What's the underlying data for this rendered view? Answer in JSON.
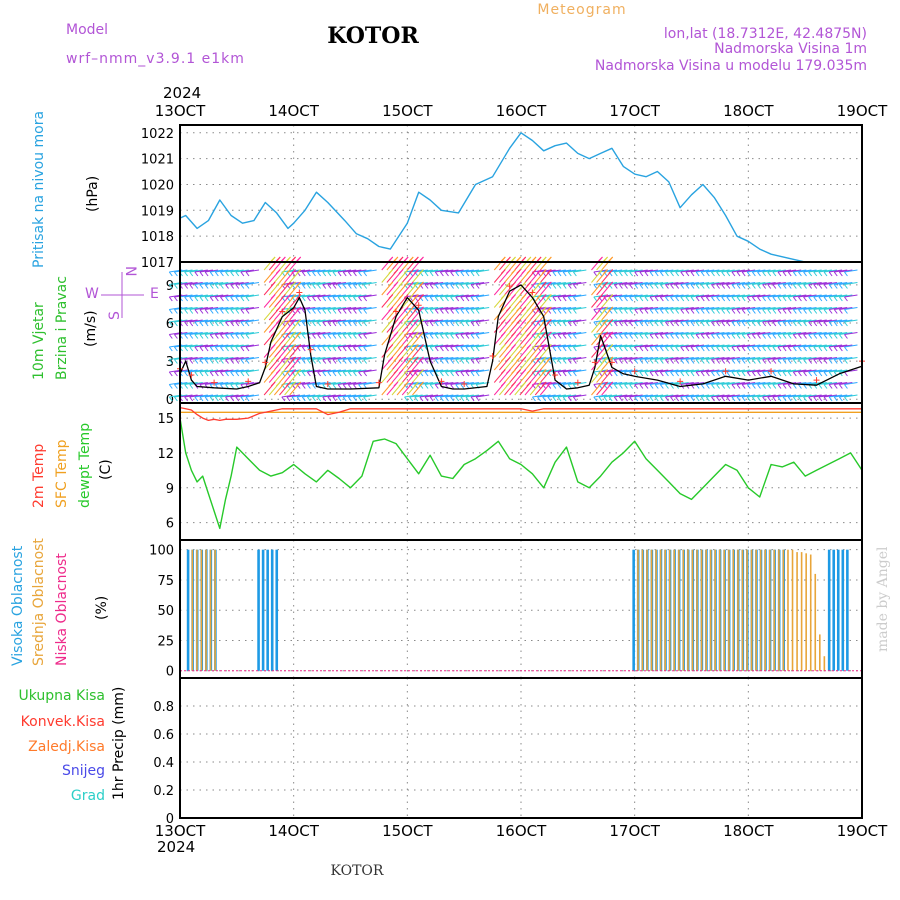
{
  "header": {
    "model_label": "Model",
    "model_name": "wrf–nmm_v3.9.1  e1km",
    "station": "KOTOR",
    "product": "Meteogram",
    "lonlat": "lon,lat (18.7312E, 42.4875N)",
    "elevation": "Nadmorska Visina 1m",
    "model_elevation": "Nadmorska Visina u modelu 179.035m"
  },
  "footer": {
    "station": "KOTOR",
    "credit": "made by Angel"
  },
  "time_axis": {
    "year": "2024",
    "ticks": [
      "13OCT",
      "14OCT",
      "15OCT",
      "16OCT",
      "17OCT",
      "18OCT",
      "19OCT"
    ]
  },
  "colors": {
    "pressure": "#29a3e0",
    "temp2m": "#ff3b2f",
    "sfc_temp": "#f0a020",
    "dewpoint": "#27c92a",
    "high_cloud": "#1d9ae5",
    "mid_cloud": "#e8a53a",
    "low_cloud": "#ee2a8a",
    "wind_label": "#2ec02e",
    "wind_speed_line": "#000000",
    "compass": "#b255d6",
    "header_purple": "#b255d6",
    "meteogram": "#f0b060",
    "snow": "#4a4ae8",
    "hail": "#2ccfc8",
    "total_precip": "#2ec02e",
    "conv_precip": "#ff3b2f",
    "frozen_precip": "#ff7a2a"
  },
  "panels": {
    "pressure": {
      "label": "Pritisak na nivou mora",
      "unit": "(hPa)"
    },
    "wind": {
      "label1": "10m Vjetar",
      "label2": "Brzina i Pravac",
      "unit": "(m/s)",
      "compass": {
        "n": "N",
        "w": "W",
        "e": "E",
        "s": "S"
      }
    },
    "temperature": {
      "label1": "2m Temp",
      "label2": "SFC Temp",
      "label3": "dewpt Temp",
      "unit": "(C)"
    },
    "clouds": {
      "label1": "Visoka Oblacnost",
      "label2": "Srednja Oblacnost",
      "label3": "Niska Oblacnost",
      "unit": "(%)"
    },
    "precip": {
      "legend": [
        "Ukupna Kisa",
        "Konvek.Kisa",
        "Zaledj.Kisa",
        "Snijeg",
        "Grad"
      ],
      "unit": "1hr Precip (mm)"
    }
  },
  "chart_data": [
    {
      "type": "line",
      "name": "Pritisak na nivou mora",
      "ylabel": "(hPa)",
      "ylim": [
        1017,
        1022.3
      ],
      "yticks": [
        1017,
        1018,
        1019,
        1020,
        1021,
        1022
      ],
      "x": [
        13.0,
        13.05,
        13.15,
        13.25,
        13.35,
        13.45,
        13.55,
        13.65,
        13.75,
        13.85,
        13.95,
        14.0,
        14.1,
        14.2,
        14.3,
        14.45,
        14.55,
        14.65,
        14.75,
        14.85,
        15.0,
        15.1,
        15.2,
        15.3,
        15.45,
        15.6,
        15.75,
        15.9,
        16.0,
        16.1,
        16.2,
        16.3,
        16.4,
        16.5,
        16.6,
        16.7,
        16.8,
        16.9,
        17.0,
        17.1,
        17.2,
        17.3,
        17.4,
        17.5,
        17.6,
        17.7,
        17.8,
        17.9,
        18.0,
        18.1,
        18.2,
        18.3,
        18.4,
        18.5,
        18.6,
        18.7,
        18.8,
        18.9,
        19.0
      ],
      "series": [
        {
          "values": [
            1018.7,
            1018.8,
            1018.3,
            1018.6,
            1019.4,
            1018.8,
            1018.5,
            1018.6,
            1019.3,
            1018.9,
            1018.3,
            1018.5,
            1019.0,
            1019.7,
            1019.3,
            1018.6,
            1018.1,
            1017.9,
            1017.6,
            1017.5,
            1018.5,
            1019.7,
            1019.4,
            1019.0,
            1018.9,
            1020.0,
            1020.3,
            1021.4,
            1022.0,
            1021.7,
            1021.3,
            1021.5,
            1021.6,
            1021.2,
            1021.0,
            1021.2,
            1021.4,
            1020.7,
            1020.4,
            1020.3,
            1020.5,
            1020.1,
            1019.1,
            1019.6,
            1020.0,
            1019.5,
            1018.8,
            1018.0,
            1017.8,
            1017.5,
            1017.3,
            1017.2,
            1017.1,
            1017.0,
            1017.0,
            1017.0,
            1017.0,
            1017.0,
            1017.0
          ]
        }
      ]
    },
    {
      "type": "line",
      "name": "10m Vjetar Brzina i Pravac",
      "ylabel": "(m/s)",
      "ylim": [
        -0.3,
        10.8
      ],
      "yticks": [
        0,
        3,
        6,
        9
      ],
      "x": [
        13.0,
        13.05,
        13.1,
        13.15,
        13.3,
        13.5,
        13.6,
        13.7,
        13.75,
        13.8,
        13.9,
        14.0,
        14.05,
        14.1,
        14.15,
        14.2,
        14.3,
        14.5,
        14.75,
        14.8,
        14.9,
        15.0,
        15.1,
        15.2,
        15.3,
        15.4,
        15.5,
        15.7,
        15.75,
        15.8,
        15.9,
        16.0,
        16.1,
        16.2,
        16.3,
        16.4,
        16.5,
        16.6,
        16.65,
        16.7,
        16.8,
        16.9,
        17.0,
        17.2,
        17.4,
        17.6,
        17.8,
        18.0,
        18.2,
        18.4,
        18.6,
        18.8,
        19.0
      ],
      "series": [
        {
          "values": [
            2.0,
            3.0,
            1.5,
            1.0,
            0.9,
            0.8,
            1.0,
            1.3,
            2.5,
            4.5,
            6.5,
            7.2,
            8.0,
            7.0,
            3.5,
            1.0,
            0.8,
            0.8,
            0.9,
            3.5,
            6.5,
            8.0,
            7.0,
            3.0,
            1.0,
            0.8,
            0.8,
            1.0,
            3.0,
            6.5,
            8.5,
            9.0,
            8.0,
            6.5,
            1.5,
            0.8,
            0.9,
            1.1,
            2.5,
            5.0,
            2.5,
            2.0,
            1.8,
            1.5,
            1.0,
            1.2,
            1.8,
            1.5,
            1.8,
            1.2,
            1.1,
            2.0,
            2.6
          ]
        }
      ]
    },
    {
      "type": "line",
      "name": "Temperature",
      "ylabel": "(C)",
      "ylim": [
        4.5,
        16.3
      ],
      "yticks": [
        6,
        9,
        12,
        15
      ],
      "x": [
        13.0,
        13.05,
        13.1,
        13.15,
        13.2,
        13.25,
        13.3,
        13.35,
        13.4,
        13.45,
        13.5,
        13.6,
        13.7,
        13.8,
        13.9,
        14.0,
        14.1,
        14.2,
        14.3,
        14.4,
        14.5,
        14.6,
        14.7,
        14.8,
        14.9,
        15.0,
        15.1,
        15.2,
        15.3,
        15.4,
        15.5,
        15.6,
        15.7,
        15.8,
        15.9,
        16.0,
        16.1,
        16.2,
        16.3,
        16.4,
        16.5,
        16.6,
        16.7,
        16.8,
        16.9,
        17.0,
        17.1,
        17.2,
        17.3,
        17.4,
        17.5,
        17.6,
        17.7,
        17.8,
        17.9,
        18.0,
        18.1,
        18.2,
        18.3,
        18.4,
        18.5,
        18.6,
        18.7,
        18.8,
        18.9,
        19.0
      ],
      "series": [
        {
          "values": [
            15.9,
            15.8,
            15.7,
            15.3,
            15.0,
            14.8,
            14.9,
            14.8,
            14.9,
            14.9,
            14.9,
            15.0,
            15.4,
            15.6,
            15.8,
            15.8,
            15.8,
            15.8,
            15.3,
            15.5,
            15.8,
            15.8,
            15.8,
            15.8,
            15.8,
            15.8,
            15.8,
            15.8,
            15.8,
            15.8,
            15.8,
            15.8,
            15.8,
            15.8,
            15.8,
            15.8,
            15.6,
            15.8,
            15.8,
            15.8,
            15.8,
            15.8,
            15.8,
            15.8,
            15.8,
            15.8,
            15.8,
            15.8,
            15.8,
            15.8,
            15.8,
            15.8,
            15.8,
            15.8,
            15.8,
            15.8,
            15.8,
            15.8,
            15.8,
            15.8,
            15.8,
            15.8,
            15.8,
            15.8,
            15.8,
            15.8
          ]
        },
        {
          "values": [
            15.5,
            15.5,
            15.5,
            15.5,
            15.5,
            15.5,
            15.5,
            15.5,
            15.5,
            15.5,
            15.5,
            15.5,
            15.5,
            15.5,
            15.5,
            15.5,
            15.5,
            15.5,
            15.5,
            15.5,
            15.5,
            15.5,
            15.5,
            15.5,
            15.5,
            15.5,
            15.5,
            15.5,
            15.5,
            15.5,
            15.5,
            15.5,
            15.5,
            15.5,
            15.5,
            15.5,
            15.5,
            15.5,
            15.5,
            15.5,
            15.5,
            15.5,
            15.5,
            15.5,
            15.5,
            15.5,
            15.5,
            15.5,
            15.5,
            15.5,
            15.5,
            15.5,
            15.5,
            15.5,
            15.5,
            15.5,
            15.5,
            15.5,
            15.5,
            15.5,
            15.5,
            15.5,
            15.5,
            15.5,
            15.5,
            15.5
          ]
        },
        {
          "values": [
            15.0,
            12.0,
            10.5,
            9.5,
            10.0,
            8.5,
            7.0,
            5.5,
            8.0,
            10.0,
            12.5,
            11.5,
            10.5,
            10.0,
            10.3,
            11.0,
            10.2,
            9.5,
            10.5,
            9.8,
            9.0,
            10.0,
            13.0,
            13.2,
            12.8,
            11.5,
            10.2,
            11.8,
            10.0,
            9.8,
            11.0,
            11.5,
            12.2,
            13.0,
            11.5,
            11.0,
            10.2,
            9.0,
            11.2,
            12.5,
            9.5,
            9.0,
            10.0,
            11.2,
            12.0,
            13.0,
            11.5,
            10.5,
            9.5,
            8.5,
            8.0,
            9.0,
            10.0,
            11.0,
            10.5,
            9.0,
            8.2,
            11.0,
            10.8,
            11.2,
            10.0,
            10.5,
            11.0,
            11.5,
            12.0,
            10.5
          ]
        }
      ]
    },
    {
      "type": "bar",
      "name": "Oblacnost",
      "ylabel": "(%)",
      "ylim": [
        -6,
        108
      ],
      "yticks": [
        0,
        25,
        50,
        75,
        100
      ],
      "series": [
        {
          "x": [
            13.08,
            13.12,
            13.16,
            13.2,
            13.24,
            13.28,
            13.32,
            13.7,
            13.74,
            13.78,
            13.82,
            13.86,
            17.0,
            17.04,
            17.08,
            17.12,
            17.16,
            17.2,
            17.24,
            17.28,
            17.32,
            17.36,
            17.4,
            17.44,
            17.48,
            17.52,
            17.56,
            17.6,
            17.64,
            17.68,
            17.72,
            17.76,
            17.8,
            17.84,
            17.88,
            17.92,
            17.96,
            18.0,
            18.04,
            18.08,
            18.12,
            18.16,
            18.2,
            18.24,
            18.28,
            18.32,
            18.72,
            18.76,
            18.8,
            18.84,
            18.88
          ],
          "values": [
            100,
            100,
            100,
            100,
            100,
            100,
            100,
            100,
            100,
            100,
            100,
            100,
            100,
            100,
            100,
            100,
            100,
            100,
            100,
            100,
            100,
            100,
            100,
            100,
            100,
            100,
            100,
            100,
            100,
            100,
            100,
            100,
            100,
            100,
            100,
            100,
            100,
            100,
            100,
            100,
            100,
            100,
            100,
            100,
            100,
            100,
            100,
            100,
            100,
            100,
            100
          ]
        },
        {
          "x": [
            13.1,
            13.14,
            13.18,
            13.22,
            13.26,
            13.3,
            17.02,
            17.06,
            17.1,
            17.14,
            17.18,
            17.22,
            17.26,
            17.3,
            17.34,
            17.38,
            17.42,
            17.46,
            17.5,
            17.54,
            17.58,
            17.62,
            17.66,
            17.7,
            17.74,
            17.78,
            17.82,
            17.86,
            17.9,
            17.94,
            17.98,
            18.02,
            18.06,
            18.1,
            18.14,
            18.18,
            18.22,
            18.26,
            18.3,
            18.34,
            18.38,
            18.42,
            18.46,
            18.5,
            18.54,
            18.58,
            18.62,
            18.66
          ],
          "values": [
            100,
            100,
            100,
            100,
            100,
            100,
            100,
            100,
            100,
            100,
            100,
            100,
            100,
            100,
            100,
            100,
            100,
            100,
            100,
            100,
            100,
            100,
            100,
            100,
            100,
            100,
            100,
            100,
            100,
            100,
            100,
            100,
            100,
            100,
            100,
            100,
            100,
            100,
            100,
            100,
            100,
            98,
            98,
            97,
            96,
            80,
            30,
            12
          ]
        },
        {
          "x": [],
          "values": []
        }
      ]
    },
    {
      "type": "line",
      "name": "1hr Precip",
      "ylabel": "1hr Precip (mm)",
      "ylim": [
        0,
        1.0
      ],
      "yticks": [
        0,
        0.2,
        0.4,
        0.6,
        0.8
      ],
      "x": [
        13.0,
        19.0
      ],
      "series": [
        {
          "values": [
            0,
            0
          ]
        }
      ]
    }
  ]
}
